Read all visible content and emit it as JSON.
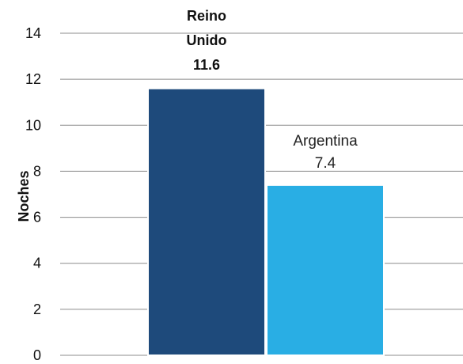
{
  "chart_data": {
    "type": "bar",
    "categories": [
      "Reino Unido",
      "Argentina"
    ],
    "values": [
      11.6,
      7.4
    ],
    "data_labels": [
      "11.6",
      "7.4"
    ],
    "title": "",
    "xlabel": "",
    "ylabel": "Noches",
    "ylim": [
      0,
      14
    ],
    "yticks": [
      "0",
      "2",
      "4",
      "6",
      "8",
      "10",
      "12",
      "14"
    ],
    "grid": true,
    "legend": "none",
    "colors": [
      "#1e4a7b",
      "#29aee4"
    ]
  }
}
